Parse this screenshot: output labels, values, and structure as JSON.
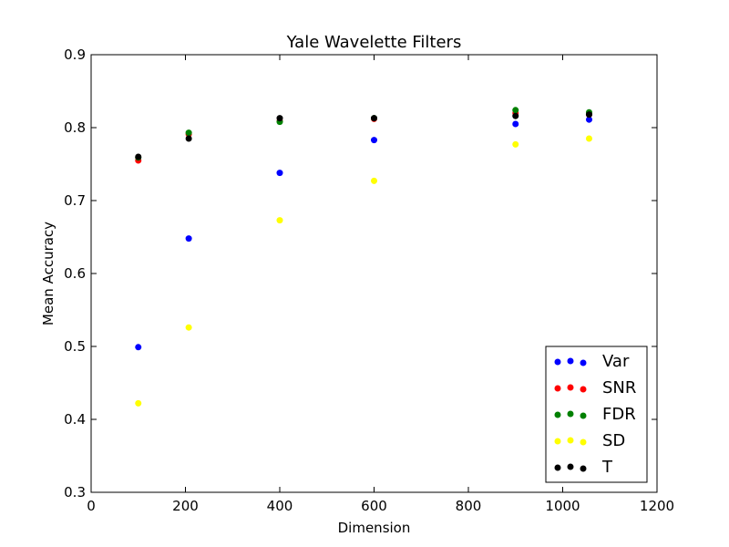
{
  "chart_data": {
    "type": "scatter",
    "title": "Yale Wavelette Filters",
    "xlabel": "Dimension",
    "ylabel": "Mean Accuracy",
    "xlim": [
      0,
      1200
    ],
    "ylim": [
      0.3,
      0.9
    ],
    "xticks": [
      0,
      200,
      400,
      600,
      800,
      1000,
      1200
    ],
    "yticks": [
      0.3,
      0.4,
      0.5,
      0.6,
      0.7,
      0.8,
      0.9
    ],
    "xtick_labels": [
      "0",
      "200",
      "400",
      "600",
      "800",
      "1000",
      "1200"
    ],
    "ytick_labels": [
      "0.3",
      "0.4",
      "0.5",
      "0.6",
      "0.7",
      "0.8",
      "0.9"
    ],
    "grid": false,
    "legend_position": "lower-right",
    "x": [
      100,
      207,
      400,
      600,
      900,
      1056
    ],
    "series": [
      {
        "name": "Var",
        "color": "#0000ff",
        "values": [
          0.499,
          0.648,
          0.738,
          0.783,
          0.805,
          0.811
        ]
      },
      {
        "name": "SNR",
        "color": "#ff0000",
        "values": [
          0.755,
          0.791,
          0.809,
          0.812,
          0.82,
          0.818
        ]
      },
      {
        "name": "FDR",
        "color": "#008000",
        "values": [
          0.759,
          0.793,
          0.808,
          0.813,
          0.824,
          0.821
        ]
      },
      {
        "name": "SD",
        "color": "#ffff00",
        "values": [
          0.422,
          0.526,
          0.673,
          0.727,
          0.777,
          0.785
        ]
      },
      {
        "name": "T",
        "color": "#000000",
        "values": [
          0.76,
          0.785,
          0.813,
          0.813,
          0.816,
          0.818
        ]
      }
    ]
  }
}
